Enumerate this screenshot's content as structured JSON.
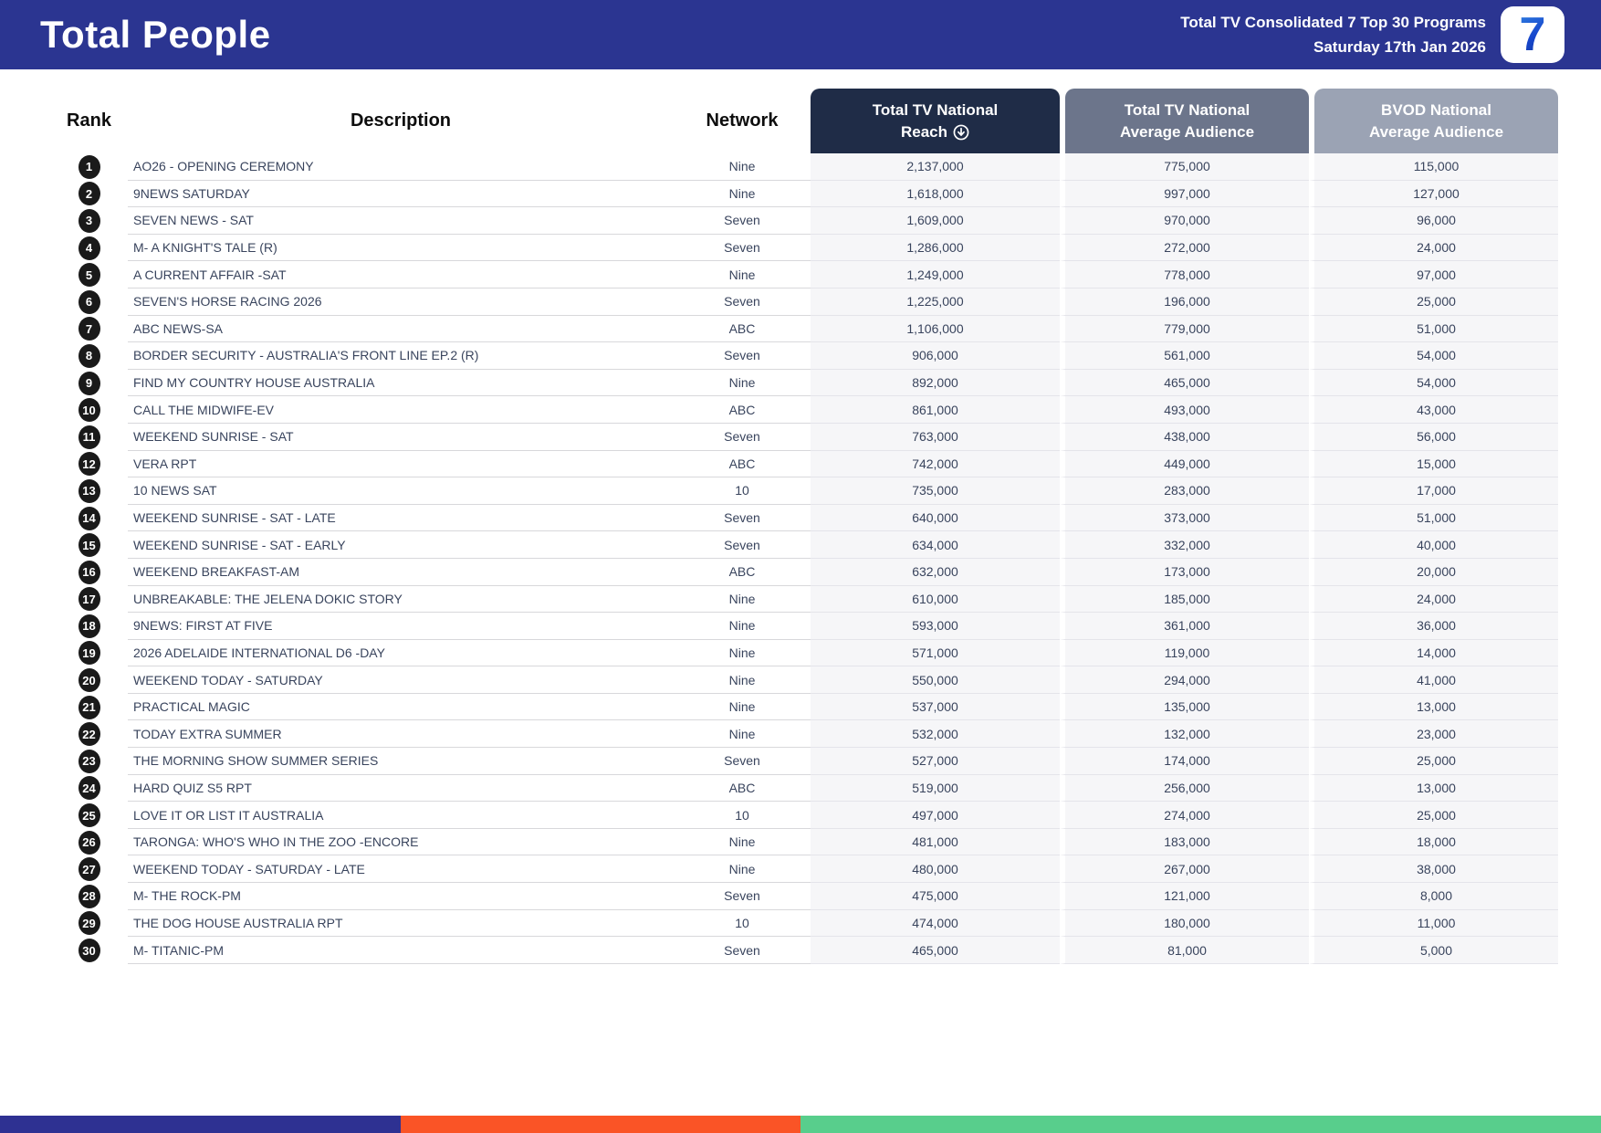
{
  "header": {
    "title": "Total People",
    "report_title": "Total TV Consolidated 7 Top 30 Programs",
    "report_date": "Saturday 17th Jan 2026",
    "logo": "7"
  },
  "columns": {
    "rank": "Rank",
    "description": "Description",
    "network": "Network",
    "reach_line1": "Total TV National",
    "reach_line2": "Reach",
    "avg_line1": "Total TV National",
    "avg_line2": "Average Audience",
    "bvod_line1": "BVOD National",
    "bvod_line2": "Average Audience",
    "sort_icon": "circle-arrow-down",
    "sorted_by": "Total TV National Reach",
    "sort_order": "descending"
  },
  "colors": {
    "header_bg": "#2B3591",
    "reach_box": "#1F2C47",
    "avg_box": "#6C758B",
    "bvod_box": "#9BA3B4",
    "row_text": "#39445D",
    "numeric_bg": "#F6F6F8",
    "badge": "#1A1A1A",
    "logo_blue": "#1746CC"
  },
  "footer_bar": {
    "segments": [
      {
        "color": "#2E3192",
        "width_pct": 25
      },
      {
        "color": "#FA5426",
        "width_pct": 25
      },
      {
        "color": "#58CE8C",
        "width_pct": 50
      }
    ]
  },
  "chart_data": {
    "type": "table",
    "title": "Total People",
    "subtitle": "Total TV Consolidated 7 Top 30 Programs — Saturday 17th Jan 2026",
    "columns": [
      "Rank",
      "Description",
      "Network",
      "Total TV National Reach",
      "Total TV National Average Audience",
      "BVOD National Average Audience"
    ],
    "rows": [
      {
        "rank": 1,
        "description": "AO26 - OPENING CEREMONY",
        "network": "Nine",
        "reach": "2,137,000",
        "avg": "775,000",
        "bvod": "115,000"
      },
      {
        "rank": 2,
        "description": "9NEWS SATURDAY",
        "network": "Nine",
        "reach": "1,618,000",
        "avg": "997,000",
        "bvod": "127,000"
      },
      {
        "rank": 3,
        "description": "SEVEN NEWS - SAT",
        "network": "Seven",
        "reach": "1,609,000",
        "avg": "970,000",
        "bvod": "96,000"
      },
      {
        "rank": 4,
        "description": "M- A KNIGHT'S TALE (R)",
        "network": "Seven",
        "reach": "1,286,000",
        "avg": "272,000",
        "bvod": "24,000"
      },
      {
        "rank": 5,
        "description": "A CURRENT AFFAIR -SAT",
        "network": "Nine",
        "reach": "1,249,000",
        "avg": "778,000",
        "bvod": "97,000"
      },
      {
        "rank": 6,
        "description": "SEVEN'S HORSE RACING 2026",
        "network": "Seven",
        "reach": "1,225,000",
        "avg": "196,000",
        "bvod": "25,000"
      },
      {
        "rank": 7,
        "description": "ABC NEWS-SA",
        "network": "ABC",
        "reach": "1,106,000",
        "avg": "779,000",
        "bvod": "51,000"
      },
      {
        "rank": 8,
        "description": "BORDER SECURITY - AUSTRALIA'S FRONT LINE EP.2 (R)",
        "network": "Seven",
        "reach": "906,000",
        "avg": "561,000",
        "bvod": "54,000"
      },
      {
        "rank": 9,
        "description": "FIND MY COUNTRY HOUSE AUSTRALIA",
        "network": "Nine",
        "reach": "892,000",
        "avg": "465,000",
        "bvod": "54,000"
      },
      {
        "rank": 10,
        "description": "CALL THE MIDWIFE-EV",
        "network": "ABC",
        "reach": "861,000",
        "avg": "493,000",
        "bvod": "43,000"
      },
      {
        "rank": 11,
        "description": "WEEKEND SUNRISE - SAT",
        "network": "Seven",
        "reach": "763,000",
        "avg": "438,000",
        "bvod": "56,000"
      },
      {
        "rank": 12,
        "description": "VERA RPT",
        "network": "ABC",
        "reach": "742,000",
        "avg": "449,000",
        "bvod": "15,000"
      },
      {
        "rank": 13,
        "description": "10 NEWS SAT",
        "network": "10",
        "reach": "735,000",
        "avg": "283,000",
        "bvod": "17,000"
      },
      {
        "rank": 14,
        "description": "WEEKEND SUNRISE - SAT - LATE",
        "network": "Seven",
        "reach": "640,000",
        "avg": "373,000",
        "bvod": "51,000"
      },
      {
        "rank": 15,
        "description": "WEEKEND SUNRISE - SAT - EARLY",
        "network": "Seven",
        "reach": "634,000",
        "avg": "332,000",
        "bvod": "40,000"
      },
      {
        "rank": 16,
        "description": "WEEKEND BREAKFAST-AM",
        "network": "ABC",
        "reach": "632,000",
        "avg": "173,000",
        "bvod": "20,000"
      },
      {
        "rank": 17,
        "description": "UNBREAKABLE: THE JELENA DOKIC STORY",
        "network": "Nine",
        "reach": "610,000",
        "avg": "185,000",
        "bvod": "24,000"
      },
      {
        "rank": 18,
        "description": "9NEWS: FIRST AT FIVE",
        "network": "Nine",
        "reach": "593,000",
        "avg": "361,000",
        "bvod": "36,000"
      },
      {
        "rank": 19,
        "description": "2026 ADELAIDE INTERNATIONAL D6 -DAY",
        "network": "Nine",
        "reach": "571,000",
        "avg": "119,000",
        "bvod": "14,000"
      },
      {
        "rank": 20,
        "description": "WEEKEND TODAY - SATURDAY",
        "network": "Nine",
        "reach": "550,000",
        "avg": "294,000",
        "bvod": "41,000"
      },
      {
        "rank": 21,
        "description": "PRACTICAL MAGIC",
        "network": "Nine",
        "reach": "537,000",
        "avg": "135,000",
        "bvod": "13,000"
      },
      {
        "rank": 22,
        "description": "TODAY EXTRA SUMMER",
        "network": "Nine",
        "reach": "532,000",
        "avg": "132,000",
        "bvod": "23,000"
      },
      {
        "rank": 23,
        "description": "THE MORNING SHOW SUMMER SERIES",
        "network": "Seven",
        "reach": "527,000",
        "avg": "174,000",
        "bvod": "25,000"
      },
      {
        "rank": 24,
        "description": "HARD QUIZ S5 RPT",
        "network": "ABC",
        "reach": "519,000",
        "avg": "256,000",
        "bvod": "13,000"
      },
      {
        "rank": 25,
        "description": "LOVE IT OR LIST IT AUSTRALIA",
        "network": "10",
        "reach": "497,000",
        "avg": "274,000",
        "bvod": "25,000"
      },
      {
        "rank": 26,
        "description": "TARONGA: WHO'S WHO IN THE ZOO -ENCORE",
        "network": "Nine",
        "reach": "481,000",
        "avg": "183,000",
        "bvod": "18,000"
      },
      {
        "rank": 27,
        "description": "WEEKEND TODAY - SATURDAY - LATE",
        "network": "Nine",
        "reach": "480,000",
        "avg": "267,000",
        "bvod": "38,000"
      },
      {
        "rank": 28,
        "description": "M- THE ROCK-PM",
        "network": "Seven",
        "reach": "475,000",
        "avg": "121,000",
        "bvod": "8,000"
      },
      {
        "rank": 29,
        "description": "THE DOG HOUSE AUSTRALIA RPT",
        "network": "10",
        "reach": "474,000",
        "avg": "180,000",
        "bvod": "11,000"
      },
      {
        "rank": 30,
        "description": "M- TITANIC-PM",
        "network": "Seven",
        "reach": "465,000",
        "avg": "81,000",
        "bvod": "5,000"
      }
    ]
  }
}
